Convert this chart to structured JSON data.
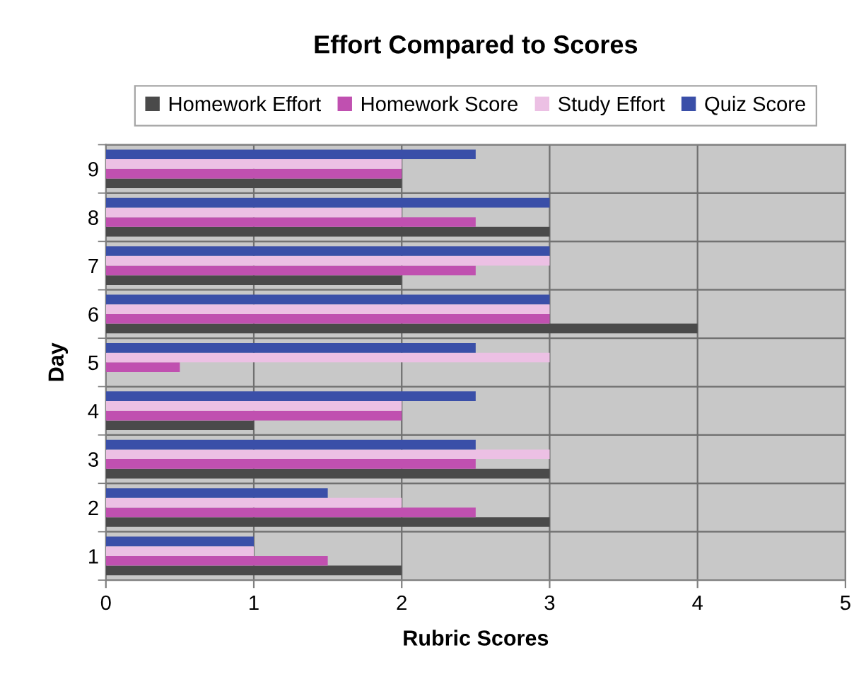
{
  "chart_data": {
    "type": "bar",
    "orientation": "horizontal",
    "title": "Effort Compared to Scores",
    "xlabel": "Rubric Scores",
    "ylabel": "Day",
    "categories": [
      "9",
      "8",
      "7",
      "6",
      "5",
      "4",
      "3",
      "2",
      "1"
    ],
    "series": [
      {
        "name": "Homework Effort",
        "color": "#4a4a4a",
        "values": [
          2,
          3,
          2,
          4,
          0,
          1,
          3,
          3,
          2
        ]
      },
      {
        "name": "Homework Score",
        "color": "#c050b0",
        "values": [
          2,
          2.5,
          2.5,
          3,
          0.5,
          2,
          2.5,
          2.5,
          1.5
        ]
      },
      {
        "name": "Study Effort",
        "color": "#ecc0e4",
        "values": [
          2,
          2,
          3,
          3,
          3,
          2,
          3,
          2,
          1
        ]
      },
      {
        "name": "Quiz Score",
        "color": "#3a4fa8",
        "values": [
          2.5,
          3,
          3,
          3,
          2.5,
          2.5,
          2.5,
          1.5,
          1
        ]
      }
    ],
    "xlim": [
      0,
      5
    ],
    "xticks": [
      0,
      1,
      2,
      3,
      4,
      5
    ],
    "grid": true,
    "legend": "top"
  }
}
